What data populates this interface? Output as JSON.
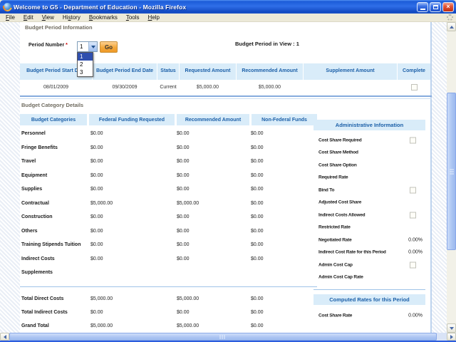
{
  "window": {
    "title": "Welcome to G5 - Department of Education - Mozilla Firefox",
    "menus": [
      {
        "label": "File",
        "accel": 0
      },
      {
        "label": "Edit",
        "accel": 0
      },
      {
        "label": "View",
        "accel": 0
      },
      {
        "label": "History",
        "accel": 2
      },
      {
        "label": "Bookmarks",
        "accel": 0
      },
      {
        "label": "Tools",
        "accel": 0
      },
      {
        "label": "Help",
        "accel": 0
      }
    ],
    "icons": {
      "app": "firefox-icon",
      "throbber": "throbber-icon",
      "minimize": "minimize-icon",
      "restore": "restore-icon",
      "close": "close-icon"
    }
  },
  "page": {
    "budget_period": {
      "section_title": "Budget Period Information",
      "period_number_label": "Period Number",
      "required_marker": "*",
      "period_select": {
        "value": "1",
        "options": [
          "1",
          "2",
          "3"
        ]
      },
      "go_label": "Go",
      "in_view_text": "Budget Period in View : 1"
    },
    "period_table": {
      "headers": [
        "Budget Period Start Date",
        "Budget Period End Date",
        "Status",
        "Requested Amount",
        "Recommended Amount",
        "Supplement Amount",
        "Complete"
      ],
      "row": {
        "start_date": "08/01/2009",
        "end_date": "09/30/2009",
        "status": "Current",
        "requested": "$5,000.00",
        "recommended": "$5,000.00",
        "supplement": "",
        "complete_checked": false
      }
    },
    "budget_category": {
      "section_title": "Budget Category Details",
      "headers": [
        "Budget Categories",
        "Federal Funding Requested",
        "Recommended Amount",
        "Non-Federal Funds"
      ],
      "rows": [
        {
          "label": "Personnel",
          "federal": "$0.00",
          "recommended": "$0.00",
          "non_federal": "$0.00"
        },
        {
          "label": "Fringe Benefits",
          "federal": "$0.00",
          "recommended": "$0.00",
          "non_federal": "$0.00"
        },
        {
          "label": "Travel",
          "federal": "$0.00",
          "recommended": "$0.00",
          "non_federal": "$0.00"
        },
        {
          "label": "Equipment",
          "federal": "$0.00",
          "recommended": "$0.00",
          "non_federal": "$0.00"
        },
        {
          "label": "Supplies",
          "federal": "$0.00",
          "recommended": "$0.00",
          "non_federal": "$0.00"
        },
        {
          "label": "Contractual",
          "federal": "$5,000.00",
          "recommended": "$5,000.00",
          "non_federal": "$0.00"
        },
        {
          "label": "Construction",
          "federal": "$0.00",
          "recommended": "$0.00",
          "non_federal": "$0.00"
        },
        {
          "label": "Others",
          "federal": "$0.00",
          "recommended": "$0.00",
          "non_federal": "$0.00"
        },
        {
          "label": "Training Stipends Tuition",
          "federal": "$0.00",
          "recommended": "$0.00",
          "non_federal": "$0.00"
        },
        {
          "label": "Indirect Costs",
          "federal": "$0.00",
          "recommended": "$0.00",
          "non_federal": "$0.00"
        },
        {
          "label": "Supplements",
          "federal": "",
          "recommended": "",
          "non_federal": ""
        }
      ],
      "totals": [
        {
          "label": "Total Direct Costs",
          "federal": "$5,000.00",
          "recommended": "$5,000.00",
          "non_federal": "$0.00"
        },
        {
          "label": "Total Indirect Costs",
          "federal": "$0.00",
          "recommended": "$0.00",
          "non_federal": "$0.00"
        },
        {
          "label": "Grand Total",
          "federal": "$5,000.00",
          "recommended": "$5,000.00",
          "non_federal": "$0.00"
        }
      ]
    },
    "admin_panel": {
      "title": "Administrative Information",
      "rows": [
        {
          "label": "Cost Share Required",
          "type": "checkbox",
          "checked": false
        },
        {
          "label": "Cost Share Method",
          "type": "text",
          "value": ""
        },
        {
          "label": "Cost Share Option",
          "type": "text",
          "value": ""
        },
        {
          "label": "Required Rate",
          "type": "text",
          "value": ""
        },
        {
          "label": "Bind To",
          "type": "checkbox",
          "checked": false
        },
        {
          "label": "Adjusted Cost Share",
          "type": "text",
          "value": ""
        },
        {
          "label": "Indirect Costs Allowed",
          "type": "checkbox",
          "checked": false
        },
        {
          "label": "Restricted Rate",
          "type": "text",
          "value": ""
        },
        {
          "label": "Negotiated Rate",
          "type": "text",
          "value": "0.00%"
        },
        {
          "label": "Indirect Cost Rate for this Period",
          "type": "text",
          "value": "0.00%"
        },
        {
          "label": "Admin Cost Cap",
          "type": "checkbox",
          "checked": false
        },
        {
          "label": "Admin Cost Cap Rate",
          "type": "text",
          "value": ""
        }
      ]
    },
    "computed_panel": {
      "title": "Computed Rates for this Period",
      "rows": [
        {
          "label": "Cost Share Rate",
          "value": "0.00%"
        }
      ]
    },
    "colors": {
      "table_header_bg": "#d9ecf9",
      "table_header_text": "#1b5fa8",
      "go_button_orange": "#f3a739",
      "selection_blue": "#2f4fae",
      "separator_blue": "#8fb2e2"
    }
  }
}
